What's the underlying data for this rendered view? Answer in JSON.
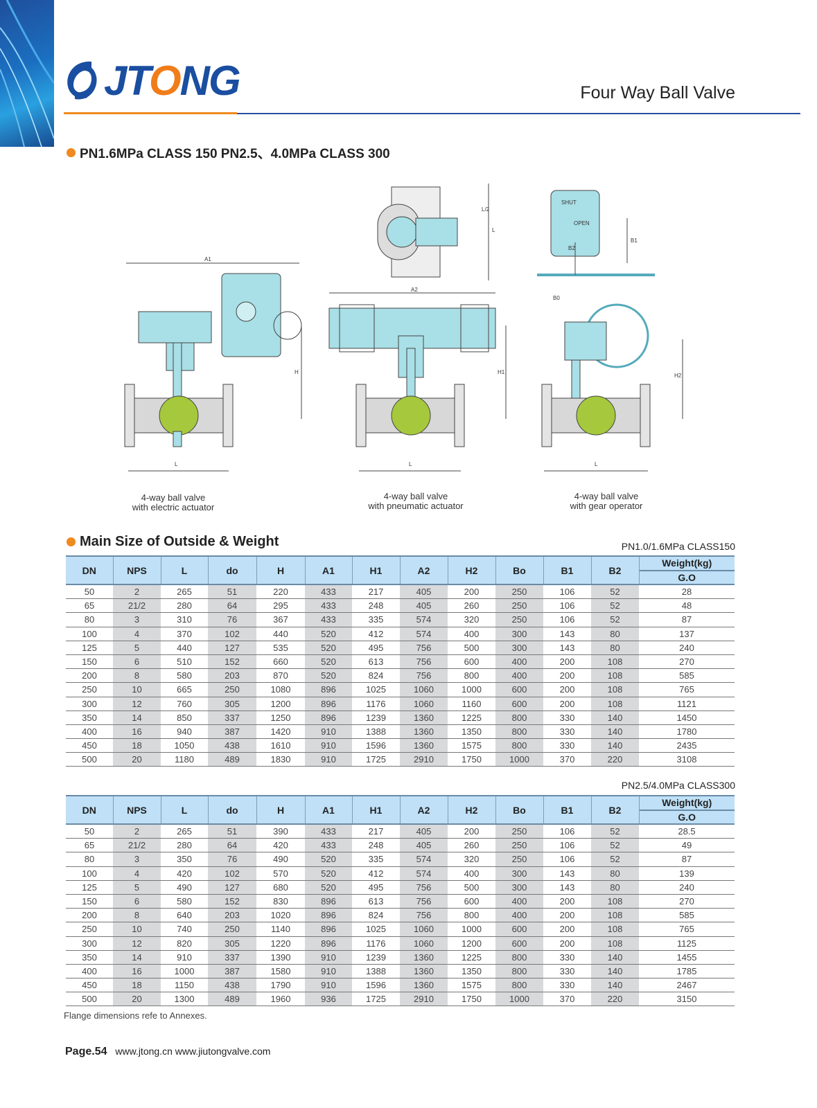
{
  "header": {
    "brand": "JTONG",
    "title": "Four Way Ball Valve"
  },
  "section1": {
    "heading": "PN1.6MPa CLASS 150 PN2.5、4.0MPa CLASS 300"
  },
  "drawings": {
    "captions": [
      [
        "4-way ball valve",
        "with electric actuator"
      ],
      [
        "4-way ball valve",
        "with pneumatic actuator"
      ],
      [
        "4-way ball valve",
        "with gear operator"
      ]
    ],
    "dimension_labels": [
      "A1",
      "H",
      "L",
      "A2",
      "H1",
      "L",
      "L/2",
      "L",
      "B0",
      "H2",
      "L",
      "B1",
      "B2",
      "SHUT",
      "OPEN"
    ]
  },
  "section2": {
    "heading": "Main Size of Outside & Weight"
  },
  "columns": [
    "DN",
    "NPS",
    "L",
    "do",
    "H",
    "A1",
    "H1",
    "A2",
    "H2",
    "Bo",
    "B1",
    "B2"
  ],
  "weight_header": {
    "top": "Weight(kg)",
    "bottom": "G.O"
  },
  "tables": [
    {
      "class_label": "PN1.0/1.6MPa CLASS150",
      "rows": [
        [
          "50",
          "2",
          "265",
          "51",
          "220",
          "433",
          "217",
          "405",
          "200",
          "250",
          "106",
          "52",
          "28"
        ],
        [
          "65",
          "21/2",
          "280",
          "64",
          "295",
          "433",
          "248",
          "405",
          "260",
          "250",
          "106",
          "52",
          "48"
        ],
        [
          "80",
          "3",
          "310",
          "76",
          "367",
          "433",
          "335",
          "574",
          "320",
          "250",
          "106",
          "52",
          "87"
        ],
        [
          "100",
          "4",
          "370",
          "102",
          "440",
          "520",
          "412",
          "574",
          "400",
          "300",
          "143",
          "80",
          "137"
        ],
        [
          "125",
          "5",
          "440",
          "127",
          "535",
          "520",
          "495",
          "756",
          "500",
          "300",
          "143",
          "80",
          "240"
        ],
        [
          "150",
          "6",
          "510",
          "152",
          "660",
          "520",
          "613",
          "756",
          "600",
          "400",
          "200",
          "108",
          "270"
        ],
        [
          "200",
          "8",
          "580",
          "203",
          "870",
          "520",
          "824",
          "756",
          "800",
          "400",
          "200",
          "108",
          "585"
        ],
        [
          "250",
          "10",
          "665",
          "250",
          "1080",
          "896",
          "1025",
          "1060",
          "1000",
          "600",
          "200",
          "108",
          "765"
        ],
        [
          "300",
          "12",
          "760",
          "305",
          "1200",
          "896",
          "1176",
          "1060",
          "1160",
          "600",
          "200",
          "108",
          "1121"
        ],
        [
          "350",
          "14",
          "850",
          "337",
          "1250",
          "896",
          "1239",
          "1360",
          "1225",
          "800",
          "330",
          "140",
          "1450"
        ],
        [
          "400",
          "16",
          "940",
          "387",
          "1420",
          "910",
          "1388",
          "1360",
          "1350",
          "800",
          "330",
          "140",
          "1780"
        ],
        [
          "450",
          "18",
          "1050",
          "438",
          "1610",
          "910",
          "1596",
          "1360",
          "1575",
          "800",
          "330",
          "140",
          "2435"
        ],
        [
          "500",
          "20",
          "1180",
          "489",
          "1830",
          "910",
          "1725",
          "2910",
          "1750",
          "1000",
          "370",
          "220",
          "3108"
        ]
      ]
    },
    {
      "class_label": "PN2.5/4.0MPa CLASS300",
      "rows": [
        [
          "50",
          "2",
          "265",
          "51",
          "390",
          "433",
          "217",
          "405",
          "200",
          "250",
          "106",
          "52",
          "28.5"
        ],
        [
          "65",
          "21/2",
          "280",
          "64",
          "420",
          "433",
          "248",
          "405",
          "260",
          "250",
          "106",
          "52",
          "49"
        ],
        [
          "80",
          "3",
          "350",
          "76",
          "490",
          "520",
          "335",
          "574",
          "320",
          "250",
          "106",
          "52",
          "87"
        ],
        [
          "100",
          "4",
          "420",
          "102",
          "570",
          "520",
          "412",
          "574",
          "400",
          "300",
          "143",
          "80",
          "139"
        ],
        [
          "125",
          "5",
          "490",
          "127",
          "680",
          "520",
          "495",
          "756",
          "500",
          "300",
          "143",
          "80",
          "240"
        ],
        [
          "150",
          "6",
          "580",
          "152",
          "830",
          "896",
          "613",
          "756",
          "600",
          "400",
          "200",
          "108",
          "270"
        ],
        [
          "200",
          "8",
          "640",
          "203",
          "1020",
          "896",
          "824",
          "756",
          "800",
          "400",
          "200",
          "108",
          "585"
        ],
        [
          "250",
          "10",
          "740",
          "250",
          "1140",
          "896",
          "1025",
          "1060",
          "1000",
          "600",
          "200",
          "108",
          "765"
        ],
        [
          "300",
          "12",
          "820",
          "305",
          "1220",
          "896",
          "1176",
          "1060",
          "1200",
          "600",
          "200",
          "108",
          "1125"
        ],
        [
          "350",
          "14",
          "910",
          "337",
          "1390",
          "910",
          "1239",
          "1360",
          "1225",
          "800",
          "330",
          "140",
          "1455"
        ],
        [
          "400",
          "16",
          "1000",
          "387",
          "1580",
          "910",
          "1388",
          "1360",
          "1350",
          "800",
          "330",
          "140",
          "1785"
        ],
        [
          "450",
          "18",
          "1150",
          "438",
          "1790",
          "910",
          "1596",
          "1360",
          "1575",
          "800",
          "330",
          "140",
          "2467"
        ],
        [
          "500",
          "20",
          "1300",
          "489",
          "1960",
          "936",
          "1725",
          "2910",
          "1750",
          "1000",
          "370",
          "220",
          "3150"
        ]
      ]
    }
  ],
  "note": "Flange dimensions refe to Annexes.",
  "footer": {
    "page": "Page.54",
    "links": "www.jtong.cn  www.jiutongvalve.com"
  },
  "colors": {
    "brand_blue": "#1a4ea0",
    "accent_orange": "#f0891e",
    "header_blue": "#bfe0f6",
    "shade_gray": "#d8d9da",
    "valve_cyan": "#a9dfe6",
    "ball_green": "#a6c83c"
  }
}
